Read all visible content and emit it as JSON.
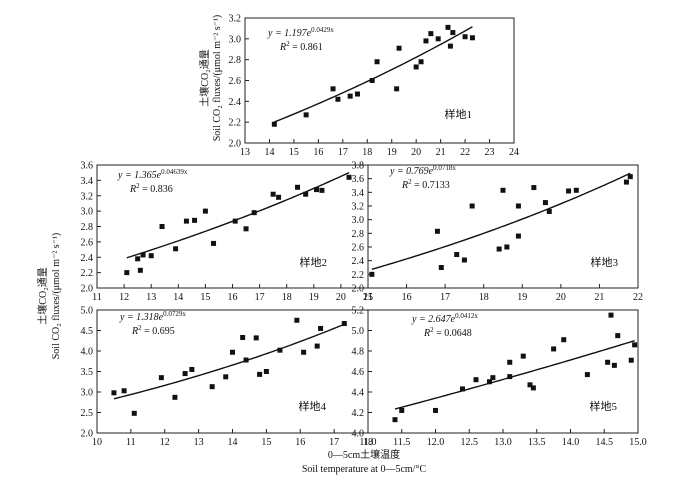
{
  "chart_data": [
    {
      "type": "scatter",
      "site_label": "样地1",
      "equation": "y = 1.197e^0.0429x",
      "equation_coef": "y = 1.197e",
      "equation_exp": "0.0429x",
      "r2_label": "R² = 0.861",
      "r2_prefix": "R",
      "r2_value": " = 0.861",
      "fit": {
        "a": 1.197,
        "b": 0.0429
      },
      "xlim": [
        13,
        24
      ],
      "ylim": [
        2.0,
        3.2
      ],
      "xticks": [
        "13",
        "14",
        "15",
        "16",
        "17",
        "18",
        "19",
        "20",
        "21",
        "22",
        "23",
        "24"
      ],
      "yticks": [
        "2.0",
        "2.2",
        "2.4",
        "2.6",
        "2.8",
        "3.0",
        "3.2"
      ],
      "ylabel_cn": "土壤CO₂通量",
      "ylabel_en": "Soil CO₂ fluxes/(μmol m⁻² s⁻¹)",
      "points": [
        {
          "x": 14.2,
          "y": 2.18
        },
        {
          "x": 15.5,
          "y": 2.27
        },
        {
          "x": 16.6,
          "y": 2.52
        },
        {
          "x": 16.8,
          "y": 2.42
        },
        {
          "x": 17.3,
          "y": 2.45
        },
        {
          "x": 17.6,
          "y": 2.47
        },
        {
          "x": 18.2,
          "y": 2.6
        },
        {
          "x": 18.4,
          "y": 2.78
        },
        {
          "x": 19.2,
          "y": 2.52
        },
        {
          "x": 19.3,
          "y": 2.91
        },
        {
          "x": 20.0,
          "y": 2.73
        },
        {
          "x": 20.2,
          "y": 2.78
        },
        {
          "x": 20.4,
          "y": 2.98
        },
        {
          "x": 20.6,
          "y": 3.05
        },
        {
          "x": 20.9,
          "y": 3.0
        },
        {
          "x": 21.3,
          "y": 3.11
        },
        {
          "x": 21.4,
          "y": 2.93
        },
        {
          "x": 21.5,
          "y": 3.06
        },
        {
          "x": 22.0,
          "y": 3.02
        },
        {
          "x": 22.3,
          "y": 3.01
        }
      ]
    },
    {
      "type": "scatter",
      "site_label": "样地2",
      "equation": "y = 1.365e^0.04639x",
      "equation_coef": "y = 1.365e",
      "equation_exp": "0.04639x",
      "r2_label": "R² = 0.836",
      "r2_prefix": "R",
      "r2_value": " = 0.836",
      "fit": {
        "a": 1.365,
        "b": 0.04639
      },
      "xlim": [
        11,
        21
      ],
      "ylim": [
        2.0,
        3.6
      ],
      "xticks": [
        "11",
        "12",
        "13",
        "14",
        "15",
        "16",
        "17",
        "18",
        "19",
        "20",
        "21"
      ],
      "yticks": [
        "2.0",
        "2.2",
        "2.4",
        "2.6",
        "2.8",
        "3.0",
        "3.2",
        "3.4",
        "3.6"
      ],
      "points": [
        {
          "x": 12.1,
          "y": 2.2
        },
        {
          "x": 12.5,
          "y": 2.38
        },
        {
          "x": 12.6,
          "y": 2.23
        },
        {
          "x": 12.7,
          "y": 2.43
        },
        {
          "x": 13.0,
          "y": 2.42
        },
        {
          "x": 13.4,
          "y": 2.8
        },
        {
          "x": 13.9,
          "y": 2.51
        },
        {
          "x": 14.3,
          "y": 2.87
        },
        {
          "x": 14.6,
          "y": 2.88
        },
        {
          "x": 15.0,
          "y": 3.0
        },
        {
          "x": 15.3,
          "y": 2.58
        },
        {
          "x": 16.1,
          "y": 2.87
        },
        {
          "x": 16.5,
          "y": 2.77
        },
        {
          "x": 16.8,
          "y": 2.98
        },
        {
          "x": 17.5,
          "y": 3.22
        },
        {
          "x": 17.7,
          "y": 3.18
        },
        {
          "x": 18.4,
          "y": 3.31
        },
        {
          "x": 18.7,
          "y": 3.22
        },
        {
          "x": 19.1,
          "y": 3.28
        },
        {
          "x": 19.3,
          "y": 3.27
        },
        {
          "x": 20.3,
          "y": 3.44
        }
      ]
    },
    {
      "type": "scatter",
      "site_label": "样地3",
      "equation": "y = 0.769e^0.0718x",
      "equation_coef": "y = 0.769e",
      "equation_exp": "0.0718x",
      "r2_label": "R² = 0.7133",
      "r2_prefix": "R",
      "r2_value": " = 0.7133",
      "fit": {
        "a": 0.769,
        "b": 0.0718
      },
      "xlim": [
        15,
        22
      ],
      "ylim": [
        2.0,
        3.8
      ],
      "xticks": [
        "15",
        "16",
        "17",
        "18",
        "19",
        "20",
        "21",
        "22"
      ],
      "yticks": [
        "2.0",
        "2.2",
        "2.4",
        "2.6",
        "2.8",
        "3.0",
        "3.2",
        "3.4",
        "3.6",
        "3.8"
      ],
      "points": [
        {
          "x": 15.1,
          "y": 2.2
        },
        {
          "x": 16.8,
          "y": 2.83
        },
        {
          "x": 16.9,
          "y": 2.3
        },
        {
          "x": 17.3,
          "y": 2.49
        },
        {
          "x": 17.5,
          "y": 2.41
        },
        {
          "x": 17.7,
          "y": 3.2
        },
        {
          "x": 18.4,
          "y": 2.57
        },
        {
          "x": 18.5,
          "y": 3.43
        },
        {
          "x": 18.6,
          "y": 2.6
        },
        {
          "x": 18.9,
          "y": 2.76
        },
        {
          "x": 18.9,
          "y": 3.2
        },
        {
          "x": 19.3,
          "y": 3.47
        },
        {
          "x": 19.6,
          "y": 3.25
        },
        {
          "x": 19.7,
          "y": 3.12
        },
        {
          "x": 20.2,
          "y": 3.42
        },
        {
          "x": 20.4,
          "y": 3.43
        },
        {
          "x": 21.7,
          "y": 3.55
        },
        {
          "x": 21.8,
          "y": 3.63
        }
      ]
    },
    {
      "type": "scatter",
      "site_label": "样地4",
      "equation": "y = 1.318e^0.0729x",
      "equation_coef": "y = 1.318e",
      "equation_exp": "0.0729x",
      "r2_label": "R² = 0.695",
      "r2_prefix": "R",
      "r2_value": " = 0.695",
      "fit": {
        "a": 1.318,
        "b": 0.0729
      },
      "xlim": [
        10,
        18
      ],
      "ylim": [
        2.0,
        5.0
      ],
      "xticks": [
        "10",
        "11",
        "12",
        "13",
        "14",
        "15",
        "16",
        "17",
        "18"
      ],
      "yticks": [
        "2.0",
        "2.5",
        "3.0",
        "3.5",
        "4.0",
        "4.5",
        "5.0"
      ],
      "points": [
        {
          "x": 10.5,
          "y": 2.98
        },
        {
          "x": 10.8,
          "y": 3.03
        },
        {
          "x": 11.1,
          "y": 2.48
        },
        {
          "x": 11.9,
          "y": 3.35
        },
        {
          "x": 12.3,
          "y": 2.87
        },
        {
          "x": 12.6,
          "y": 3.45
        },
        {
          "x": 12.8,
          "y": 3.55
        },
        {
          "x": 13.4,
          "y": 3.13
        },
        {
          "x": 13.8,
          "y": 3.37
        },
        {
          "x": 14.0,
          "y": 3.97
        },
        {
          "x": 14.3,
          "y": 4.33
        },
        {
          "x": 14.4,
          "y": 3.78
        },
        {
          "x": 14.7,
          "y": 4.32
        },
        {
          "x": 14.8,
          "y": 3.43
        },
        {
          "x": 15.0,
          "y": 3.5
        },
        {
          "x": 15.4,
          "y": 4.02
        },
        {
          "x": 15.9,
          "y": 4.75
        },
        {
          "x": 16.1,
          "y": 3.97
        },
        {
          "x": 16.5,
          "y": 4.12
        },
        {
          "x": 16.6,
          "y": 4.55
        },
        {
          "x": 17.3,
          "y": 4.67
        }
      ]
    },
    {
      "type": "scatter",
      "site_label": "样地5",
      "equation": "y = 2.647e^0.0412x",
      "equation_coef": "y = 2.647e",
      "equation_exp": "0.0412x",
      "r2_label": "R² = 0.0648",
      "r2_prefix": "R",
      "r2_value": " = 0.0648",
      "fit": {
        "a": 2.647,
        "b": 0.0412
      },
      "xlim": [
        11.0,
        15.0
      ],
      "ylim": [
        4.0,
        5.2
      ],
      "xticks": [
        "11.0",
        "11.5",
        "12.0",
        "12.5",
        "13.0",
        "13.5",
        "14.0",
        "14.5",
        "15.0"
      ],
      "yticks": [
        "4.0",
        "4.2",
        "4.4",
        "4.6",
        "4.8",
        "5.0",
        "5.2"
      ],
      "points": [
        {
          "x": 11.4,
          "y": 4.13
        },
        {
          "x": 11.5,
          "y": 4.22
        },
        {
          "x": 12.0,
          "y": 4.22
        },
        {
          "x": 12.4,
          "y": 4.43
        },
        {
          "x": 12.6,
          "y": 4.52
        },
        {
          "x": 12.8,
          "y": 4.5
        },
        {
          "x": 12.85,
          "y": 4.54
        },
        {
          "x": 13.1,
          "y": 4.55
        },
        {
          "x": 13.1,
          "y": 4.69
        },
        {
          "x": 13.3,
          "y": 4.75
        },
        {
          "x": 13.4,
          "y": 4.47
        },
        {
          "x": 13.45,
          "y": 4.44
        },
        {
          "x": 13.75,
          "y": 4.82
        },
        {
          "x": 13.9,
          "y": 4.91
        },
        {
          "x": 14.25,
          "y": 4.57
        },
        {
          "x": 14.55,
          "y": 4.69
        },
        {
          "x": 14.6,
          "y": 5.15
        },
        {
          "x": 14.65,
          "y": 4.66
        },
        {
          "x": 14.7,
          "y": 4.95
        },
        {
          "x": 14.9,
          "y": 4.71
        },
        {
          "x": 14.95,
          "y": 4.86
        }
      ]
    }
  ],
  "shared": {
    "ylabel_cn": "土壤CO₂通量",
    "ylabel_en": "Soil CO₂ fluxes/(μmol m⁻² s⁻¹)",
    "xlabel_cn": "0—5cm土壤温度",
    "xlabel_en": "Soil temperature at 0—5cm/°C"
  }
}
